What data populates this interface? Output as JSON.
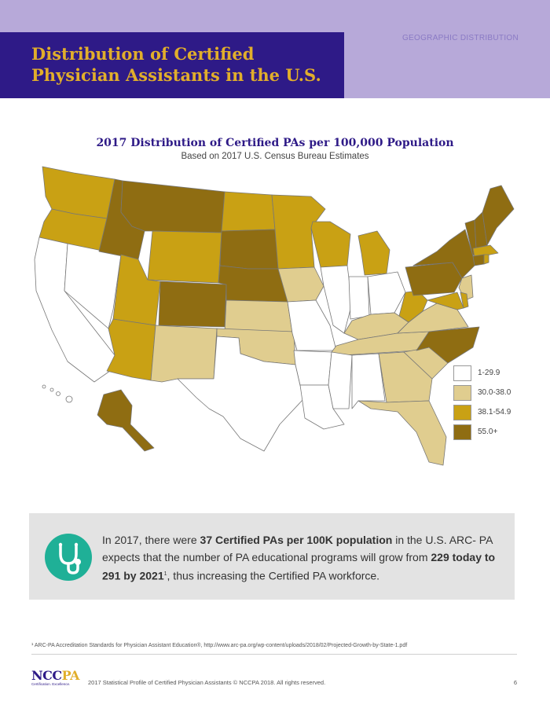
{
  "header": {
    "title": "Distribution of Certified Physician Assistants in the U.S.",
    "section": "GEOGRAPHIC DISTRIBUTION"
  },
  "map": {
    "title": "2017 Distribution of Certified PAs per 100,000 Population",
    "subtitle": "Based on 2017 U.S. Census Bureau Estimates",
    "legend": [
      {
        "label": "1-29.9",
        "color": "#ffffff"
      },
      {
        "label": "30.0-38.0",
        "color": "#e0cd8f"
      },
      {
        "label": "38.1-54.9",
        "color": "#c9a114"
      },
      {
        "label": "55.0+",
        "color": "#8f6d12"
      }
    ]
  },
  "info": {
    "p1": "In 2017, there were ",
    "b1": "37 Certified PAs per 100K population",
    "p2": " in the U.S. ARC- PA expects that the number of PA educational programs will grow from ",
    "b2": "229 today to 291 by 2021",
    "sup": "1",
    "p3": ",  thus increasing the Certified PA workforce."
  },
  "footnote": "¹ ARC-PA Accreditation Standards for Physician Assistant Education®, http://www.arc-pa.org/wp-content/uploads/2018/02/Projected-Growth-by-State-1.pdf",
  "footer": {
    "logo_a": "NCC",
    "logo_b": "PA",
    "tagline": "Certification.  Excellence.",
    "text": "2017 Statistical Profile of Certified Physician Assistants    © NCCPA 2018. All rights reserved.",
    "page": "6"
  },
  "colors": {
    "purple": "#2e1a87",
    "gold": "#e1ae2b",
    "lavender": "#b7a9d9",
    "teal": "#1fb097"
  }
}
